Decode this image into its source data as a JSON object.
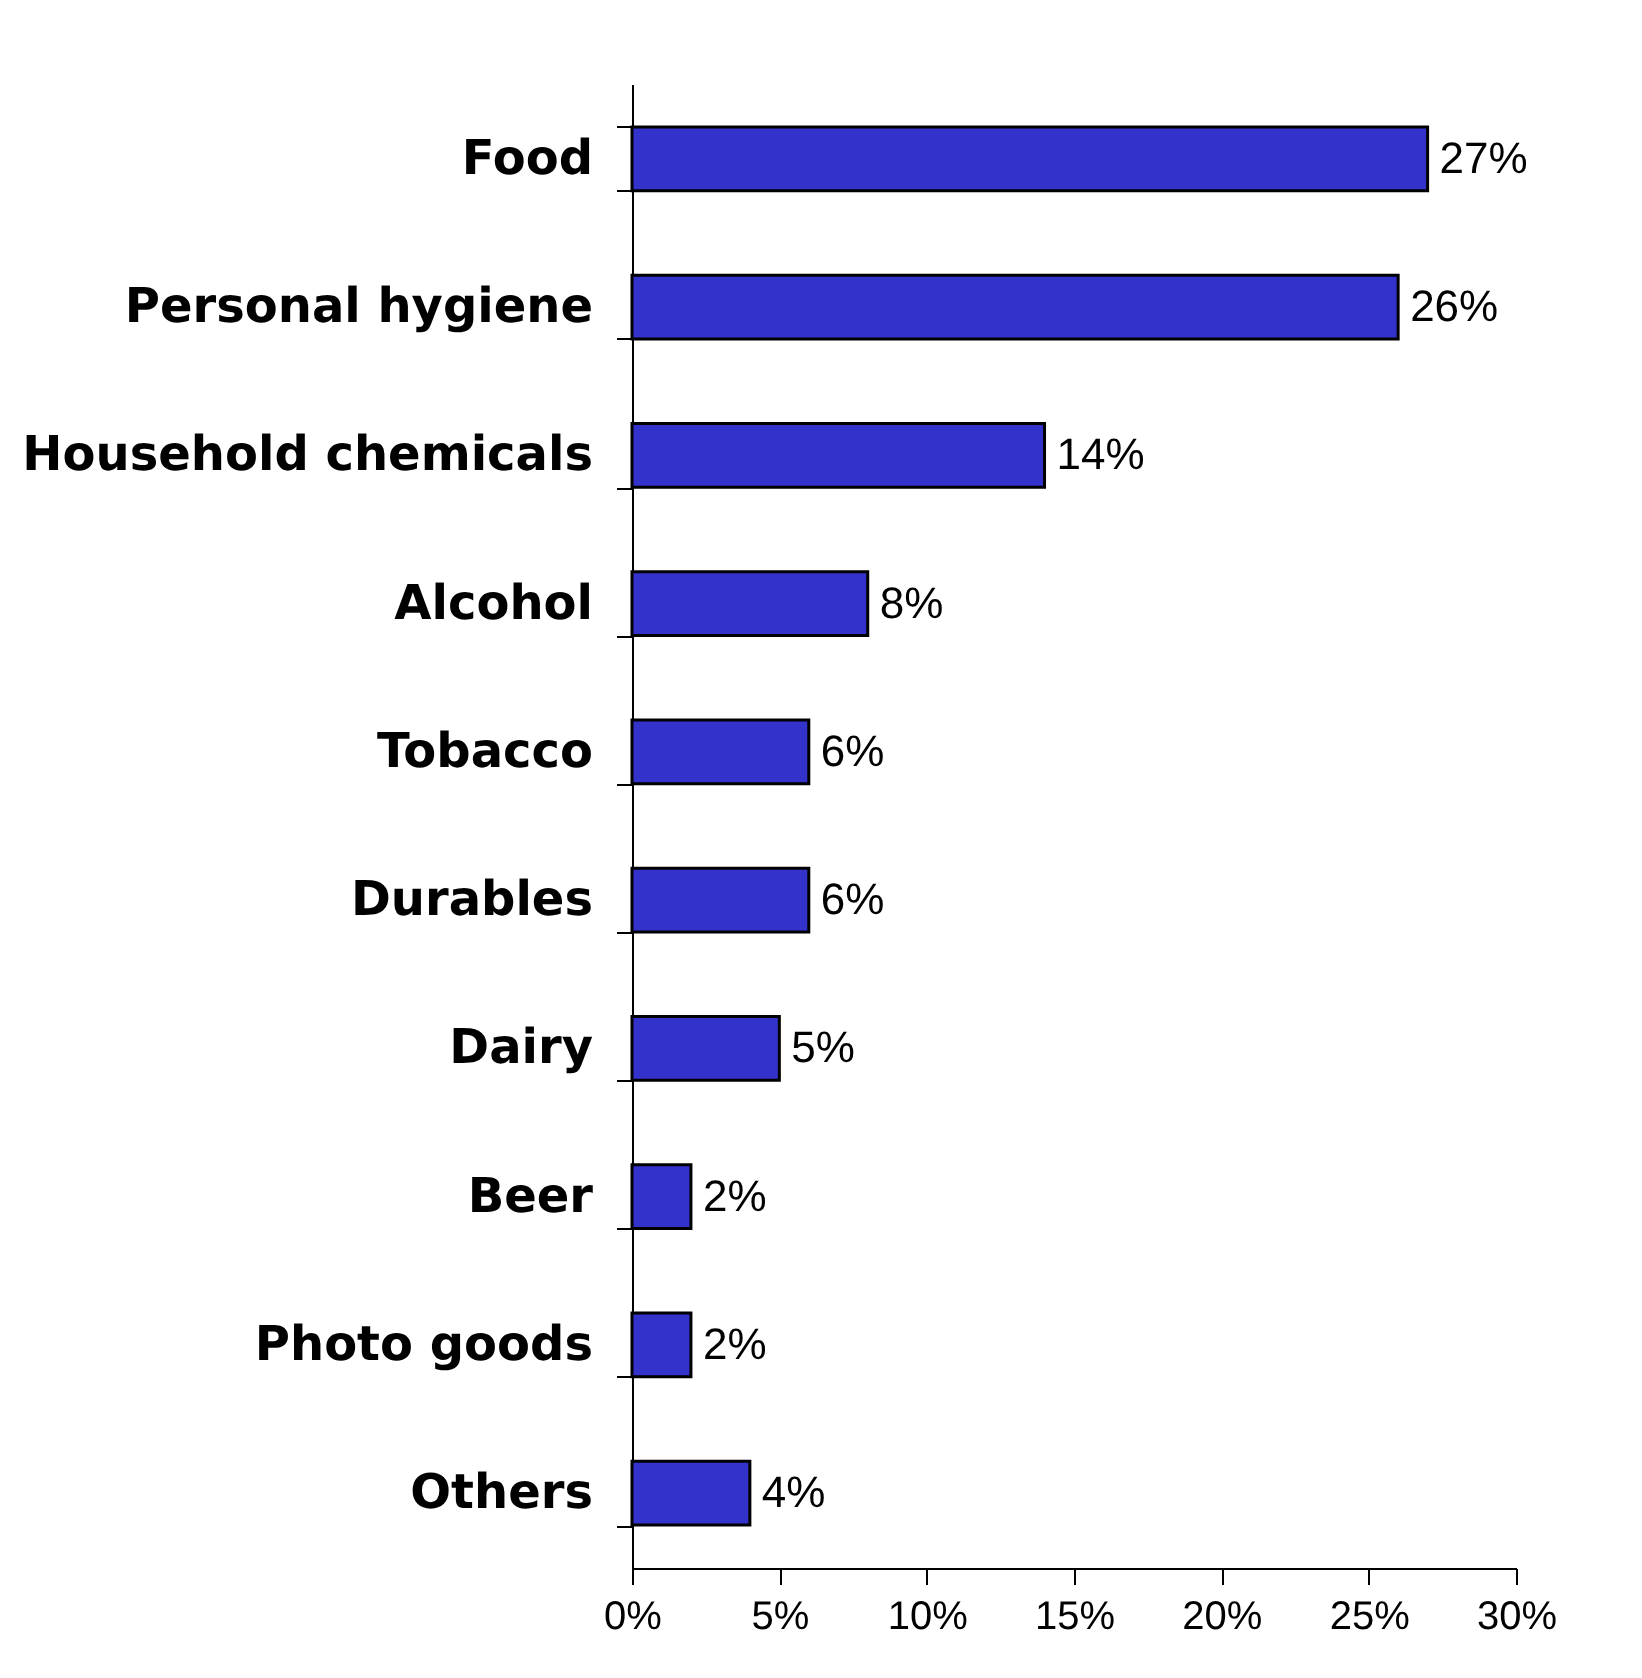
{
  "chart_data": {
    "type": "bar",
    "orientation": "horizontal",
    "categories": [
      "Food",
      "Personal hygiene",
      "Household chemicals",
      "Alcohol",
      "Tobacco",
      "Durables",
      "Dairy",
      "Beer",
      "Photo goods",
      "Others"
    ],
    "values": [
      27,
      26,
      14,
      8,
      6,
      6,
      5,
      2,
      2,
      4
    ],
    "value_labels": [
      "27%",
      "26%",
      "14%",
      "8%",
      "6%",
      "6%",
      "5%",
      "2%",
      "2%",
      "4%"
    ],
    "color": "#3333cc",
    "xlim": [
      0,
      30
    ],
    "xticks": [
      {
        "value": 0,
        "label": "0%"
      },
      {
        "value": 5,
        "label": "5%"
      },
      {
        "value": 10,
        "label": "10%"
      },
      {
        "value": 15,
        "label": "15%"
      },
      {
        "value": 20,
        "label": "20%"
      },
      {
        "value": 25,
        "label": "25%"
      },
      {
        "value": 30,
        "label": "30%"
      }
    ],
    "grid": false
  }
}
